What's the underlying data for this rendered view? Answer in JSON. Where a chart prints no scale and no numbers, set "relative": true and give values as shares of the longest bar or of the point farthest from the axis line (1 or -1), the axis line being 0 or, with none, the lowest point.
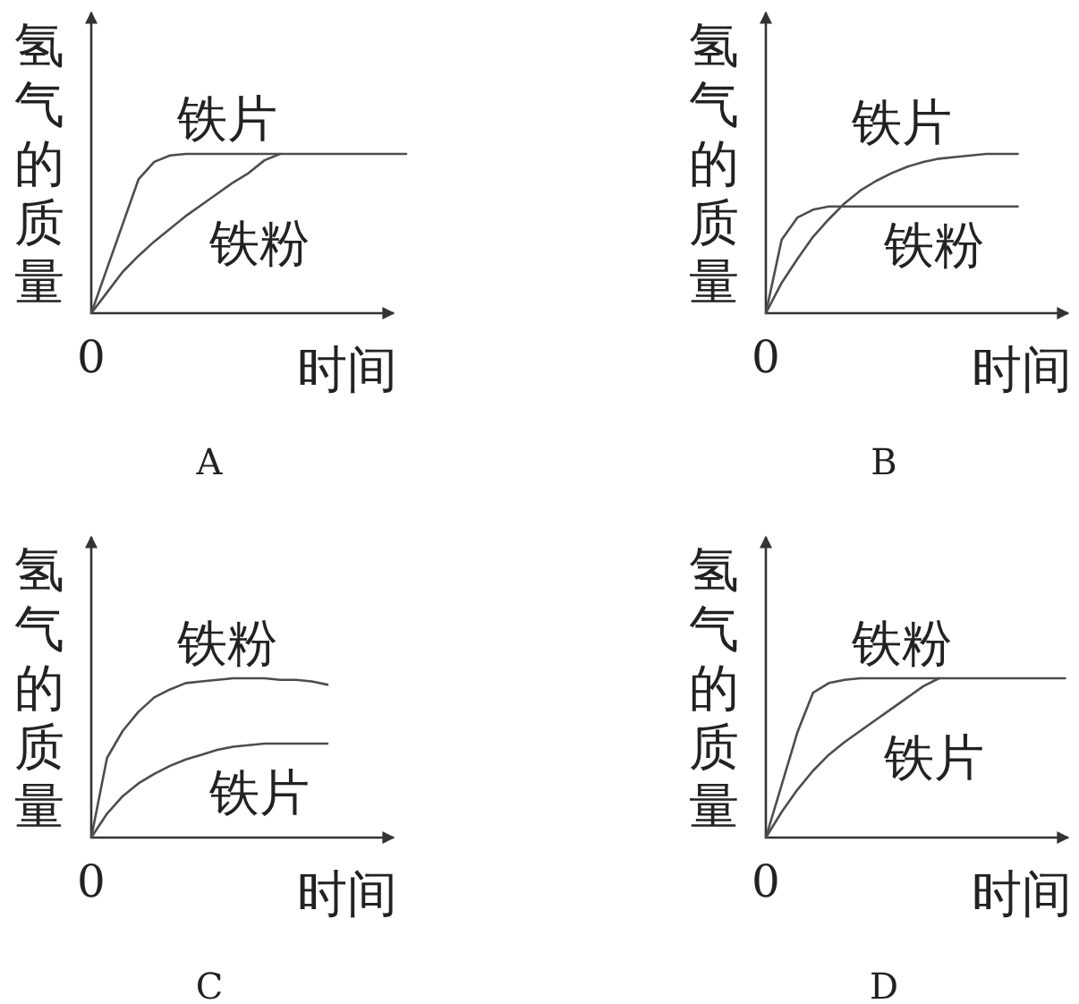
{
  "chart_data": [
    {
      "type": "line",
      "title": "A",
      "xlabel": "时间",
      "ylabel": "氢气的质量",
      "relative": true,
      "annotations": [
        {
          "text": "0",
          "y": 0
        }
      ],
      "categories": [
        null,
        null,
        null,
        null,
        null,
        null,
        null,
        null,
        null,
        null,
        null,
        null,
        null,
        null,
        null,
        null,
        null,
        null,
        null,
        null,
        null
      ],
      "series": [
        {
          "name": "铁片",
          "color": "#4d4d4d",
          "values": [
            0,
            0.28,
            0.56,
            0.84,
            0.95,
            0.99,
            1,
            1,
            1,
            1,
            1,
            1,
            1,
            1,
            1,
            1,
            1,
            1,
            1,
            1,
            1
          ]
        },
        {
          "name": "铁粉",
          "color": "#4d4d4d",
          "values": [
            0,
            0.13,
            0.26,
            0.36,
            0.45,
            0.53,
            0.61,
            0.68,
            0.75,
            0.82,
            0.88,
            0.96,
            1,
            null,
            null,
            null,
            null,
            null,
            null,
            null,
            null
          ]
        }
      ]
    },
    {
      "type": "line",
      "title": "B",
      "xlabel": "时间",
      "ylabel": "氢气的质量",
      "relative": true,
      "annotations": [
        {
          "text": "0",
          "y": 0
        }
      ],
      "categories": [
        null,
        null,
        null,
        null,
        null,
        null,
        null,
        null,
        null,
        null,
        null,
        null,
        null,
        null,
        null,
        null,
        null
      ],
      "series": [
        {
          "name": "铁片",
          "color": "#4d4d4d",
          "values": [
            0,
            0.19,
            0.34,
            0.48,
            0.59,
            0.69,
            0.77,
            0.83,
            0.88,
            0.92,
            0.95,
            0.97,
            0.98,
            0.99,
            1,
            1,
            1
          ]
        },
        {
          "name": "铁粉",
          "color": "#4d4d4d",
          "values": [
            0,
            0.46,
            0.6,
            0.65,
            0.67,
            0.67,
            0.67,
            0.67,
            0.67,
            0.67,
            0.67,
            0.67,
            0.67,
            0.67,
            0.67,
            0.67,
            0.67
          ]
        }
      ]
    },
    {
      "type": "line",
      "title": "C",
      "xlabel": "时间",
      "ylabel": "氢气的质量",
      "relative": true,
      "annotations": [
        {
          "text": "0",
          "y": 0
        }
      ],
      "categories": [
        null,
        null,
        null,
        null,
        null,
        null,
        null,
        null,
        null,
        null,
        null,
        null,
        null,
        null,
        null,
        null
      ],
      "series": [
        {
          "name": "铁粉",
          "color": "#4d4d4d",
          "values": [
            0,
            0.5,
            0.67,
            0.79,
            0.88,
            0.93,
            0.97,
            0.98,
            0.99,
            1,
            1,
            1,
            0.99,
            0.99,
            0.98,
            0.96
          ]
        },
        {
          "name": "铁片",
          "color": "#4d4d4d",
          "values": [
            0,
            0.15,
            0.26,
            0.34,
            0.4,
            0.45,
            0.49,
            0.52,
            0.55,
            0.57,
            0.58,
            0.59,
            0.59,
            0.59,
            0.59,
            0.59
          ]
        }
      ]
    },
    {
      "type": "line",
      "title": "D",
      "xlabel": "时间",
      "ylabel": "氢气的质量",
      "relative": true,
      "annotations": [
        {
          "text": "0",
          "y": 0
        }
      ],
      "categories": [
        null,
        null,
        null,
        null,
        null,
        null,
        null,
        null,
        null,
        null,
        null,
        null,
        null,
        null,
        null,
        null,
        null,
        null,
        null,
        null
      ],
      "series": [
        {
          "name": "铁粉",
          "color": "#4d4d4d",
          "values": [
            0,
            0.33,
            0.66,
            0.91,
            0.97,
            0.99,
            1,
            1,
            1,
            1,
            1,
            1,
            1,
            1,
            1,
            1,
            1,
            1,
            1,
            1
          ]
        },
        {
          "name": "铁片",
          "color": "#4d4d4d",
          "values": [
            0,
            0.16,
            0.3,
            0.42,
            0.52,
            0.6,
            0.67,
            0.74,
            0.81,
            0.88,
            0.95,
            1,
            null,
            null,
            null,
            null,
            null,
            null,
            null,
            null
          ]
        }
      ]
    }
  ]
}
